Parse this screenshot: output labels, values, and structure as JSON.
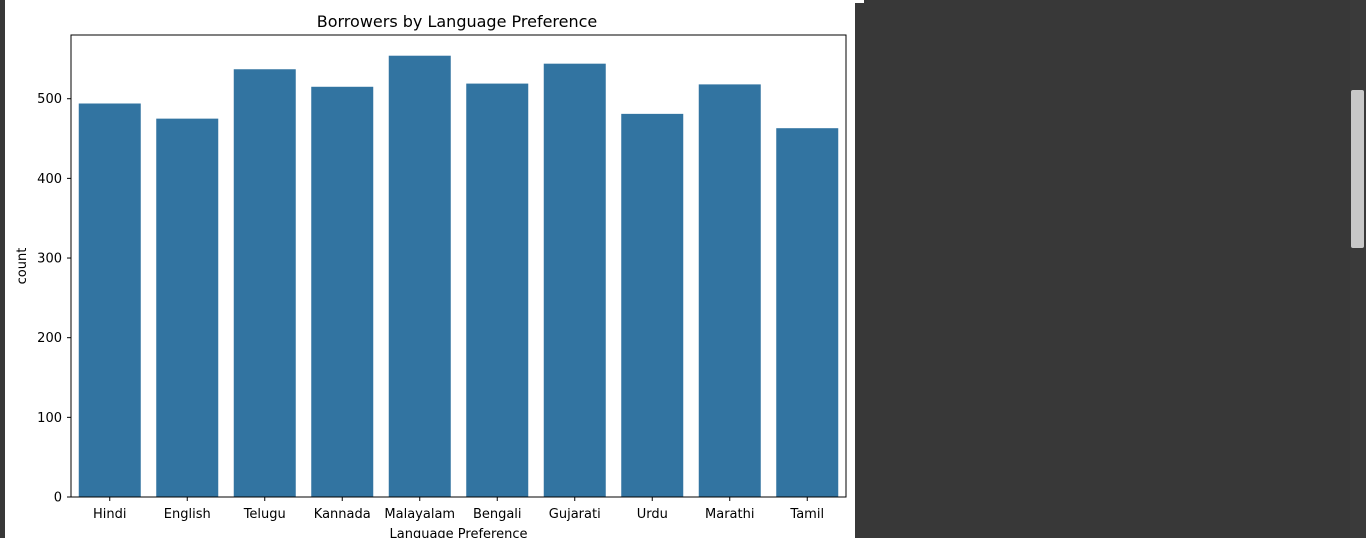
{
  "chart_data": {
    "type": "bar",
    "title": "Borrowers by Language Preference",
    "xlabel": "Language Preference",
    "ylabel": "count",
    "categories": [
      "Hindi",
      "English",
      "Telugu",
      "Kannada",
      "Malayalam",
      "Bengali",
      "Gujarati",
      "Urdu",
      "Marathi",
      "Tamil"
    ],
    "values": [
      494,
      475,
      537,
      515,
      554,
      519,
      544,
      481,
      518,
      463
    ],
    "ylim": [
      0,
      580
    ],
    "yticks": [
      0,
      100,
      200,
      300,
      400,
      500
    ],
    "bar_color": "#3274a1",
    "grid": false,
    "legend": "none"
  }
}
